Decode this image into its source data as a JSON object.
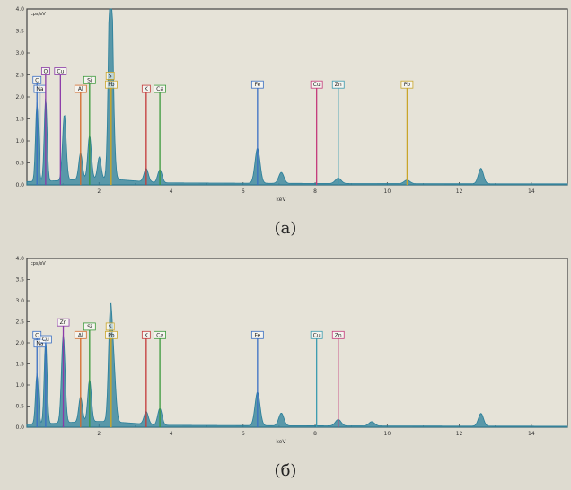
{
  "captions": [
    "(а)",
    "(б)"
  ],
  "chart_data": [
    {
      "type": "area",
      "header": "cps/eV",
      "xlabel": "keV",
      "ylabel": "",
      "xlim": [
        0,
        15
      ],
      "ylim": [
        0,
        4.0
      ],
      "x_ticks": [
        "2",
        "4",
        "6",
        "8",
        "10",
        "12",
        "14"
      ],
      "x_tick_values": [
        2,
        4,
        6,
        8,
        10,
        12,
        14
      ],
      "y_ticks": [
        "0.0",
        "0.5",
        "1.0",
        "1.5",
        "2.0",
        "2.5",
        "3.0",
        "3.5",
        "4.0"
      ],
      "y_tick_values": [
        0,
        0.5,
        1.0,
        1.5,
        2.0,
        2.5,
        3.0,
        3.5,
        4.0
      ],
      "grid": false,
      "spectrum": {
        "color": "#2a7f9a",
        "baseline": 0.05,
        "peaks": [
          {
            "x": 0.28,
            "y": 1.8,
            "w": 0.04
          },
          {
            "x": 0.52,
            "y": 1.9,
            "w": 0.04
          },
          {
            "x": 1.04,
            "y": 1.5,
            "w": 0.05
          },
          {
            "x": 1.49,
            "y": 0.6,
            "w": 0.05
          },
          {
            "x": 1.74,
            "y": 1.0,
            "w": 0.05
          },
          {
            "x": 2.01,
            "y": 0.5,
            "w": 0.05
          },
          {
            "x": 2.31,
            "y": 3.3,
            "w": 0.05
          },
          {
            "x": 2.35,
            "y": 2.6,
            "w": 0.06
          },
          {
            "x": 3.31,
            "y": 0.3,
            "w": 0.06
          },
          {
            "x": 3.69,
            "y": 0.3,
            "w": 0.06
          },
          {
            "x": 6.4,
            "y": 0.8,
            "w": 0.07
          },
          {
            "x": 7.06,
            "y": 0.25,
            "w": 0.07
          },
          {
            "x": 8.64,
            "y": 0.12,
            "w": 0.08
          },
          {
            "x": 10.55,
            "y": 0.08,
            "w": 0.08
          },
          {
            "x": 12.6,
            "y": 0.35,
            "w": 0.07
          }
        ]
      },
      "markers": [
        {
          "label": "C",
          "x": 0.28,
          "height": 2.3,
          "color": "#3a6fc4"
        },
        {
          "label": "Na",
          "x": 0.36,
          "height": 2.1,
          "color": "#3a6fc4"
        },
        {
          "label": "O",
          "x": 0.52,
          "height": 2.5,
          "color": "#8b3aa8"
        },
        {
          "label": "Cu",
          "x": 0.93,
          "height": 2.5,
          "color": "#8b3aa8"
        },
        {
          "label": "Al",
          "x": 1.49,
          "height": 2.1,
          "color": "#d46a2b"
        },
        {
          "label": "Si",
          "x": 1.74,
          "height": 2.3,
          "color": "#3a9a3a"
        },
        {
          "label": "S",
          "x": 2.31,
          "height": 2.4,
          "color": "#c9a52a"
        },
        {
          "label": "Pb",
          "x": 2.34,
          "height": 2.2,
          "color": "#c9a52a"
        },
        {
          "label": "K",
          "x": 3.31,
          "height": 2.1,
          "color": "#c43a3a"
        },
        {
          "label": "Ca",
          "x": 3.69,
          "height": 2.1,
          "color": "#3a9a3a"
        },
        {
          "label": "Fe",
          "x": 6.4,
          "height": 2.2,
          "color": "#3a6fc4"
        },
        {
          "label": "Cu",
          "x": 8.04,
          "height": 2.2,
          "color": "#c43a7a"
        },
        {
          "label": "Zn",
          "x": 8.64,
          "height": 2.2,
          "color": "#3a9ab0"
        },
        {
          "label": "Pb",
          "x": 10.55,
          "height": 2.2,
          "color": "#c9a52a"
        }
      ]
    },
    {
      "type": "area",
      "header": "cps/eV",
      "xlabel": "keV",
      "ylabel": "",
      "xlim": [
        0,
        15
      ],
      "ylim": [
        0,
        4.0
      ],
      "x_ticks": [
        "2",
        "4",
        "6",
        "8",
        "10",
        "12",
        "14"
      ],
      "x_tick_values": [
        2,
        4,
        6,
        8,
        10,
        12,
        14
      ],
      "y_ticks": [
        "0.0",
        "0.5",
        "1.0",
        "1.5",
        "2.0",
        "2.5",
        "3.0",
        "3.5",
        "4.0"
      ],
      "y_tick_values": [
        0,
        0.5,
        1.0,
        1.5,
        2.0,
        2.5,
        3.0,
        3.5,
        4.0
      ],
      "grid": false,
      "spectrum": {
        "color": "#2a7f9a",
        "baseline": 0.05,
        "peaks": [
          {
            "x": 0.28,
            "y": 1.2,
            "w": 0.04
          },
          {
            "x": 0.52,
            "y": 2.0,
            "w": 0.04
          },
          {
            "x": 1.01,
            "y": 2.1,
            "w": 0.05
          },
          {
            "x": 1.49,
            "y": 0.6,
            "w": 0.05
          },
          {
            "x": 1.74,
            "y": 1.0,
            "w": 0.05
          },
          {
            "x": 2.31,
            "y": 2.3,
            "w": 0.05
          },
          {
            "x": 2.4,
            "y": 1.4,
            "w": 0.06
          },
          {
            "x": 3.31,
            "y": 0.3,
            "w": 0.06
          },
          {
            "x": 3.69,
            "y": 0.4,
            "w": 0.06
          },
          {
            "x": 6.4,
            "y": 0.8,
            "w": 0.07
          },
          {
            "x": 7.06,
            "y": 0.3,
            "w": 0.07
          },
          {
            "x": 8.64,
            "y": 0.15,
            "w": 0.08
          },
          {
            "x": 9.57,
            "y": 0.1,
            "w": 0.08
          },
          {
            "x": 12.6,
            "y": 0.3,
            "w": 0.07
          }
        ]
      },
      "markers": [
        {
          "label": "C",
          "x": 0.28,
          "height": 2.1,
          "color": "#3a6fc4"
        },
        {
          "label": "Na",
          "x": 0.36,
          "height": 1.9,
          "color": "#3a6fc4"
        },
        {
          "label": "Cu",
          "x": 0.52,
          "height": 2.0,
          "color": "#3a6fc4"
        },
        {
          "label": "Zn",
          "x": 1.01,
          "height": 2.4,
          "color": "#8b3aa8"
        },
        {
          "label": "Al",
          "x": 1.49,
          "height": 2.1,
          "color": "#d46a2b"
        },
        {
          "label": "Si",
          "x": 1.74,
          "height": 2.3,
          "color": "#3a9a3a"
        },
        {
          "label": "S",
          "x": 2.31,
          "height": 2.3,
          "color": "#c9a52a"
        },
        {
          "label": "Pb",
          "x": 2.34,
          "height": 2.1,
          "color": "#c9a52a"
        },
        {
          "label": "K",
          "x": 3.31,
          "height": 2.1,
          "color": "#c43a3a"
        },
        {
          "label": "Ca",
          "x": 3.69,
          "height": 2.1,
          "color": "#3a9a3a"
        },
        {
          "label": "Fe",
          "x": 6.4,
          "height": 2.1,
          "color": "#3a6fc4"
        },
        {
          "label": "Cu",
          "x": 8.04,
          "height": 2.1,
          "color": "#3a9ab0"
        },
        {
          "label": "Zn",
          "x": 8.64,
          "height": 2.1,
          "color": "#c43a7a"
        }
      ]
    }
  ]
}
